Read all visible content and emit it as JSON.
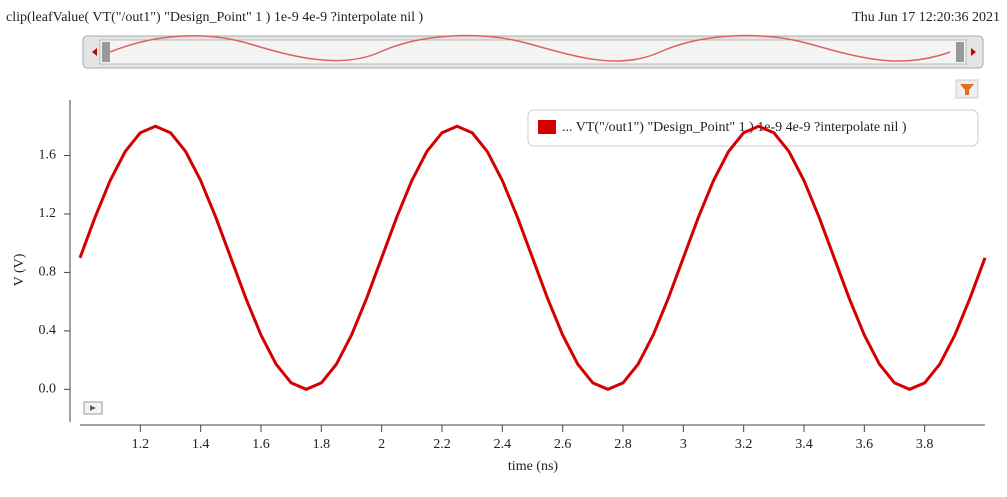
{
  "header": {
    "expression": "clip(leafValue( VT(\"/out1\") \"Design_Point\" 1 ) 1e-9 4e-9 ?interpolate nil )",
    "timestamp": "Thu Jun 17 12:20:36 2021"
  },
  "chart_data": {
    "type": "line",
    "xlabel": "time (ns)",
    "ylabel": "V (V)",
    "x": [
      1.0,
      1.05,
      1.1,
      1.15,
      1.2,
      1.25,
      1.3,
      1.35,
      1.4,
      1.45,
      1.5,
      1.55,
      1.6,
      1.65,
      1.7,
      1.75,
      1.8,
      1.85,
      1.9,
      1.95,
      2.0,
      2.05,
      2.1,
      2.15,
      2.2,
      2.25,
      2.3,
      2.35,
      2.4,
      2.45,
      2.5,
      2.55,
      2.6,
      2.65,
      2.7,
      2.75,
      2.8,
      2.85,
      2.9,
      2.95,
      3.0,
      3.05,
      3.1,
      3.15,
      3.2,
      3.25,
      3.3,
      3.35,
      3.4,
      3.45,
      3.5,
      3.55,
      3.6,
      3.65,
      3.7,
      3.75,
      3.8,
      3.85,
      3.9,
      3.95,
      4.0
    ],
    "series": [
      {
        "name": "... VT(\"/out1\") \"Design_Point\" 1 ) 1e-9 4e-9 ?interpolate nil )",
        "color": "#d40000",
        "values": [
          0.9,
          1.178,
          1.429,
          1.628,
          1.756,
          1.8,
          1.756,
          1.628,
          1.429,
          1.178,
          0.9,
          0.622,
          0.371,
          0.172,
          0.044,
          0,
          0.044,
          0.172,
          0.371,
          0.622,
          0.9,
          1.178,
          1.429,
          1.628,
          1.756,
          1.8,
          1.756,
          1.628,
          1.429,
          1.178,
          0.9,
          0.622,
          0.371,
          0.172,
          0.044,
          0,
          0.044,
          0.172,
          0.371,
          0.622,
          0.9,
          1.178,
          1.429,
          1.628,
          1.756,
          1.8,
          1.756,
          1.628,
          1.429,
          1.178,
          0.9,
          0.622,
          0.371,
          0.172,
          0.044,
          0,
          0.044,
          0.172,
          0.371,
          0.622,
          0.9
        ]
      }
    ],
    "xlim": [
      1.0,
      4.0
    ],
    "xticks": [
      1.2,
      1.4,
      1.6,
      1.8,
      2.0,
      2.2,
      2.4,
      2.6,
      2.8,
      3.0,
      3.2,
      3.4,
      3.6,
      3.8
    ],
    "ylim": [
      -0.21,
      1.98
    ],
    "yticks": [
      {
        "value": 0,
        "label": "0.0"
      },
      0.4,
      0.8,
      1.2,
      1.6
    ]
  }
}
